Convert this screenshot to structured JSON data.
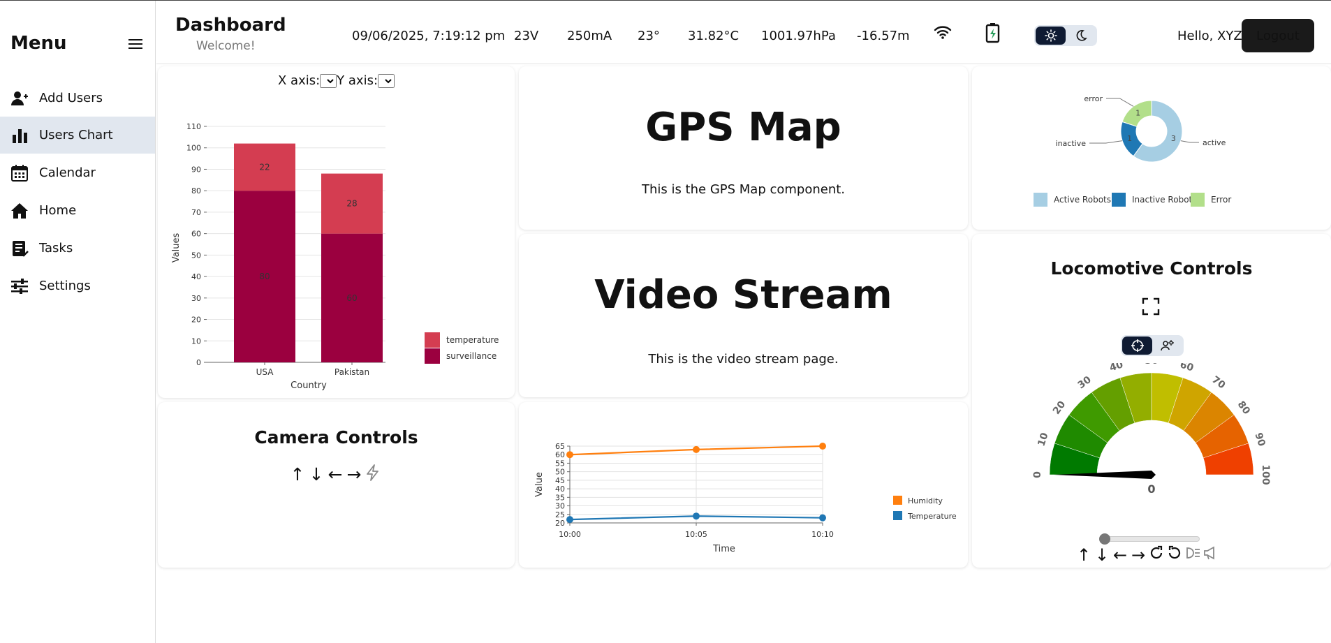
{
  "sidebar": {
    "title": "Menu",
    "items": [
      {
        "label": "Add Users",
        "icon": "add-user-icon"
      },
      {
        "label": "Users Chart",
        "icon": "bar-chart-icon",
        "active": true
      },
      {
        "label": "Calendar",
        "icon": "calendar-icon"
      },
      {
        "label": "Home",
        "icon": "home-icon"
      },
      {
        "label": "Tasks",
        "icon": "tasks-icon"
      },
      {
        "label": "Settings",
        "icon": "settings-sliders-icon"
      }
    ]
  },
  "header": {
    "title": "Dashboard",
    "subtitle": "Welcome!",
    "datetime": "09/06/2025, 7:19:12 pm",
    "voltage": "23V",
    "current": "250mA",
    "angle": "23°",
    "temperature": "31.82°C",
    "pressure": "1001.97hPa",
    "altitude": "-16.57m",
    "greeting": "Hello, XYZ",
    "logout_label": "Logout"
  },
  "users_chart": {
    "x_axis_label": "X axis:",
    "y_axis_label": "Y axis:"
  },
  "gps": {
    "title": "GPS Map",
    "text": "This is the GPS Map component."
  },
  "video": {
    "title": "Video Stream",
    "text": "This is the video stream page."
  },
  "camera": {
    "title": "Camera Controls",
    "controls": [
      "↑",
      "↓",
      "←",
      "→"
    ]
  },
  "loco": {
    "title": "Locomotive Controls",
    "controls": [
      "↑",
      "↓",
      "←",
      "→"
    ],
    "gauge_value_label": "0",
    "speed_slider": 0
  },
  "colors": {
    "accent_dark": "#0f1b33",
    "surveillance": "#9b003f",
    "temperature_bar": "#d43d51",
    "humidity": "#ff7f0e",
    "temperature_line": "#1f77b4",
    "donut_active": "#a6cee3",
    "donut_inactive": "#1f78b4",
    "donut_error": "#b2df8a"
  },
  "chart_data": [
    {
      "type": "bar",
      "stacked": true,
      "categories": [
        "USA",
        "Pakistan"
      ],
      "series": [
        {
          "name": "surveillance",
          "values": [
            80,
            60
          ]
        },
        {
          "name": "temperature",
          "values": [
            22,
            28
          ]
        }
      ],
      "data_labels": [
        [
          "80",
          "60"
        ],
        [
          "22",
          "28"
        ]
      ],
      "xlabel": "Country",
      "ylabel": "Values",
      "ylim": [
        0,
        110
      ],
      "yticks": [
        0,
        10,
        20,
        30,
        40,
        50,
        60,
        70,
        80,
        90,
        100,
        110
      ],
      "legend": "bottom-right",
      "grid": true
    },
    {
      "type": "pie",
      "donut": true,
      "slices": [
        {
          "name": "active",
          "legend": "Active Robots",
          "value": 3
        },
        {
          "name": "inactive",
          "legend": "Inactive Robots",
          "value": 1
        },
        {
          "name": "error",
          "legend": "Error",
          "value": 1
        }
      ],
      "legend": "bottom"
    },
    {
      "type": "line",
      "x": [
        "10:00",
        "10:05",
        "10:10"
      ],
      "series": [
        {
          "name": "Humidity",
          "values": [
            60,
            63,
            65
          ]
        },
        {
          "name": "Temperature",
          "values": [
            22,
            24,
            23
          ]
        }
      ],
      "xlabel": "Time",
      "ylabel": "Value",
      "ylim": [
        20,
        65
      ],
      "yticks": [
        20,
        25,
        30,
        35,
        40,
        45,
        50,
        55,
        60,
        65
      ],
      "legend": "right",
      "grid": true
    },
    {
      "type": "gauge",
      "value": 0,
      "min": 0,
      "max": 100,
      "ticks": [
        "0",
        "10",
        "20",
        "30",
        "40",
        "50",
        "60",
        "70",
        "80",
        "90",
        "100"
      ],
      "value_label": "0"
    }
  ]
}
